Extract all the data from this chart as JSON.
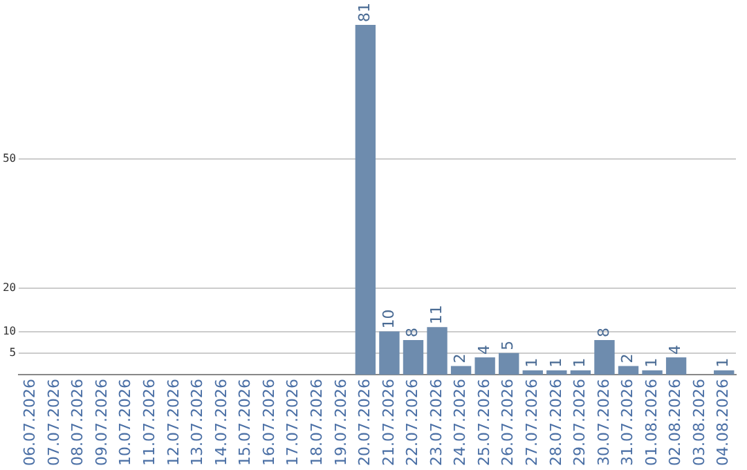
{
  "chart_data": {
    "type": "bar",
    "categories": [
      "06.07.2026",
      "07.07.2026",
      "08.07.2026",
      "09.07.2026",
      "10.07.2026",
      "11.07.2026",
      "12.07.2026",
      "13.07.2026",
      "14.07.2026",
      "15.07.2026",
      "16.07.2026",
      "17.07.2026",
      "18.07.2026",
      "19.07.2026",
      "20.07.2026",
      "21.07.2026",
      "22.07.2026",
      "23.07.2026",
      "24.07.2026",
      "25.07.2026",
      "26.07.2026",
      "27.07.2026",
      "28.07.2026",
      "29.07.2026",
      "30.07.2026",
      "31.07.2026",
      "01.08.2026",
      "02.08.2026",
      "03.08.2026",
      "04.08.2026"
    ],
    "values": [
      0,
      0,
      0,
      0,
      0,
      0,
      0,
      0,
      0,
      0,
      0,
      0,
      0,
      0,
      81,
      10,
      8,
      11,
      2,
      4,
      5,
      1,
      1,
      1,
      8,
      2,
      1,
      4,
      0,
      1
    ],
    "value_labels": [
      null,
      null,
      null,
      null,
      null,
      null,
      null,
      null,
      null,
      null,
      null,
      null,
      null,
      null,
      "81",
      "10",
      "8",
      "11",
      "2",
      "4",
      "5",
      "1",
      "1",
      "1",
      "8",
      "2",
      "1",
      "4",
      null,
      "1"
    ],
    "color": "#6e8cae",
    "ylim": [
      0,
      81
    ],
    "yticks": [
      5,
      10,
      20,
      50
    ],
    "grid": "y",
    "legend": false
  }
}
